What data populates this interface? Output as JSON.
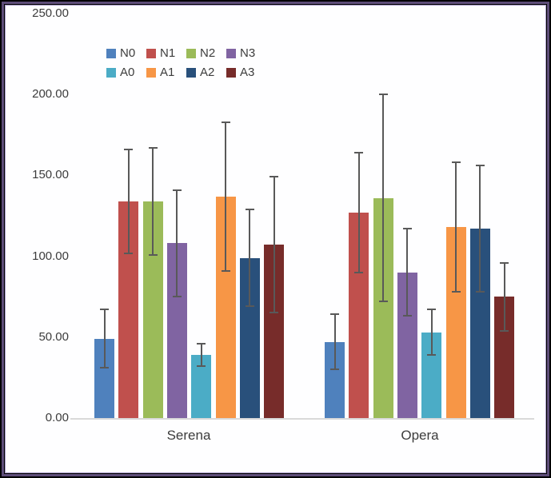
{
  "chart_data": {
    "type": "bar",
    "title": "",
    "xlabel": "",
    "ylabel": "",
    "categories": [
      "Serena",
      "Opera"
    ],
    "series": [
      {
        "name": "N0",
        "color": "#4F81BD",
        "values": [
          49,
          47
        ],
        "errors": [
          18,
          17
        ]
      },
      {
        "name": "N1",
        "color": "#C0504D",
        "values": [
          134,
          127
        ],
        "errors": [
          32,
          37
        ]
      },
      {
        "name": "N2",
        "color": "#9BBB59",
        "values": [
          134,
          136
        ],
        "errors": [
          33,
          64
        ]
      },
      {
        "name": "N3",
        "color": "#8064A2",
        "values": [
          108,
          90
        ],
        "errors": [
          33,
          27
        ]
      },
      {
        "name": "A0",
        "color": "#4BACC6",
        "values": [
          39,
          53
        ],
        "errors": [
          7,
          14
        ]
      },
      {
        "name": "A1",
        "color": "#F79646",
        "values": [
          137,
          118
        ],
        "errors": [
          46,
          40
        ]
      },
      {
        "name": "A2",
        "color": "#29507B",
        "values": [
          99,
          117
        ],
        "errors": [
          30,
          39
        ]
      },
      {
        "name": "A3",
        "color": "#772C2A",
        "values": [
          107,
          75
        ],
        "errors": [
          42,
          21
        ]
      }
    ],
    "yticks": [
      {
        "label": "250.00",
        "value": 250
      },
      {
        "label": "200.00",
        "value": 200
      },
      {
        "label": "150.00",
        "value": 150
      },
      {
        "label": "100.00",
        "value": 100
      },
      {
        "label": "50.00",
        "value": 50
      },
      {
        "label": "0.00",
        "value": 0
      }
    ],
    "ylim": [
      0,
      250
    ],
    "grid": false,
    "legend_position": "top-left, 2 rows of 4",
    "error_bars": true,
    "error_bar_color": "#595959",
    "axis_line_color": "#D9D9D9",
    "text_color": "#3C3C3C",
    "frame_colors": {
      "outer": "#000000",
      "mid": "#5E4D79",
      "inner": "#A89AC7"
    }
  }
}
